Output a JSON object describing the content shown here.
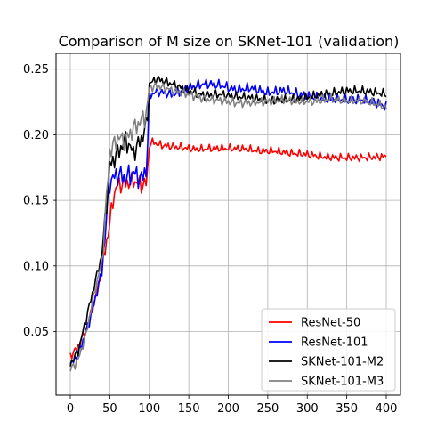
{
  "chart_data": {
    "type": "line",
    "title": "Comparison of M size on SKNet-101 (validation)",
    "xlabel": "",
    "ylabel": "",
    "xlim": [
      -18,
      418
    ],
    "ylim": [
      0.0015,
      0.262
    ],
    "xticks": [
      0,
      50,
      100,
      150,
      200,
      250,
      300,
      350,
      400
    ],
    "yticks": [
      0.05,
      0.1,
      0.15,
      0.2,
      0.25
    ],
    "grid": true,
    "legend_position": "lower-right",
    "series": [
      {
        "name": "ResNet-50",
        "color": "#ff0000",
        "keypoints": [
          [
            0,
            0.03
          ],
          [
            10,
            0.037
          ],
          [
            20,
            0.05
          ],
          [
            30,
            0.07
          ],
          [
            40,
            0.095
          ],
          [
            50,
            0.13
          ],
          [
            55,
            0.152
          ],
          [
            60,
            0.16
          ],
          [
            70,
            0.162
          ],
          [
            80,
            0.165
          ],
          [
            90,
            0.163
          ],
          [
            97,
            0.165
          ],
          [
            100,
            0.193
          ],
          [
            105,
            0.196
          ],
          [
            110,
            0.194
          ],
          [
            120,
            0.193
          ],
          [
            140,
            0.192
          ],
          [
            160,
            0.19
          ],
          [
            180,
            0.19
          ],
          [
            200,
            0.189
          ],
          [
            220,
            0.188
          ],
          [
            240,
            0.186
          ],
          [
            260,
            0.186
          ],
          [
            280,
            0.185
          ],
          [
            300,
            0.185
          ],
          [
            320,
            0.184
          ],
          [
            340,
            0.184
          ],
          [
            360,
            0.184
          ],
          [
            380,
            0.184
          ],
          [
            400,
            0.184
          ]
        ],
        "noise": 0.004,
        "phase": 1.3
      },
      {
        "name": "ResNet-101",
        "color": "#0000ff",
        "keypoints": [
          [
            0,
            0.022
          ],
          [
            10,
            0.032
          ],
          [
            20,
            0.048
          ],
          [
            30,
            0.07
          ],
          [
            40,
            0.095
          ],
          [
            50,
            0.165
          ],
          [
            60,
            0.172
          ],
          [
            70,
            0.17
          ],
          [
            80,
            0.175
          ],
          [
            90,
            0.17
          ],
          [
            97,
            0.18
          ],
          [
            100,
            0.232
          ],
          [
            110,
            0.235
          ],
          [
            130,
            0.232
          ],
          [
            150,
            0.236
          ],
          [
            170,
            0.238
          ],
          [
            190,
            0.236
          ],
          [
            210,
            0.232
          ],
          [
            230,
            0.234
          ],
          [
            250,
            0.231
          ],
          [
            270,
            0.234
          ],
          [
            290,
            0.232
          ],
          [
            310,
            0.23
          ],
          [
            330,
            0.229
          ],
          [
            350,
            0.228
          ],
          [
            370,
            0.227
          ],
          [
            390,
            0.223
          ],
          [
            400,
            0.22
          ]
        ],
        "noise": 0.005,
        "phase": 2.7
      },
      {
        "name": "SKNet-101-M2",
        "color": "#000000",
        "keypoints": [
          [
            0,
            0.025
          ],
          [
            10,
            0.035
          ],
          [
            20,
            0.06
          ],
          [
            30,
            0.085
          ],
          [
            40,
            0.11
          ],
          [
            50,
            0.18
          ],
          [
            60,
            0.19
          ],
          [
            70,
            0.2
          ],
          [
            80,
            0.19
          ],
          [
            90,
            0.2
          ],
          [
            97,
            0.21
          ],
          [
            100,
            0.24
          ],
          [
            110,
            0.243
          ],
          [
            130,
            0.238
          ],
          [
            150,
            0.232
          ],
          [
            170,
            0.228
          ],
          [
            190,
            0.229
          ],
          [
            210,
            0.228
          ],
          [
            230,
            0.228
          ],
          [
            250,
            0.227
          ],
          [
            270,
            0.228
          ],
          [
            290,
            0.229
          ],
          [
            310,
            0.231
          ],
          [
            330,
            0.232
          ],
          [
            350,
            0.233
          ],
          [
            370,
            0.232
          ],
          [
            390,
            0.23
          ],
          [
            400,
            0.229
          ]
        ],
        "noise": 0.0045,
        "phase": 4.1
      },
      {
        "name": "SKNet-101-M3",
        "color": "#808080",
        "keypoints": [
          [
            0,
            0.022
          ],
          [
            10,
            0.03
          ],
          [
            20,
            0.05
          ],
          [
            30,
            0.08
          ],
          [
            40,
            0.105
          ],
          [
            50,
            0.19
          ],
          [
            60,
            0.2
          ],
          [
            70,
            0.198
          ],
          [
            80,
            0.205
          ],
          [
            90,
            0.21
          ],
          [
            97,
            0.215
          ],
          [
            100,
            0.235
          ],
          [
            110,
            0.236
          ],
          [
            130,
            0.232
          ],
          [
            150,
            0.229
          ],
          [
            170,
            0.226
          ],
          [
            190,
            0.226
          ],
          [
            210,
            0.225
          ],
          [
            230,
            0.226
          ],
          [
            250,
            0.227
          ],
          [
            270,
            0.228
          ],
          [
            290,
            0.226
          ],
          [
            310,
            0.225
          ],
          [
            330,
            0.226
          ],
          [
            350,
            0.224
          ],
          [
            370,
            0.224
          ],
          [
            390,
            0.222
          ],
          [
            400,
            0.22
          ]
        ],
        "noise": 0.0045,
        "phase": 5.6
      }
    ]
  }
}
